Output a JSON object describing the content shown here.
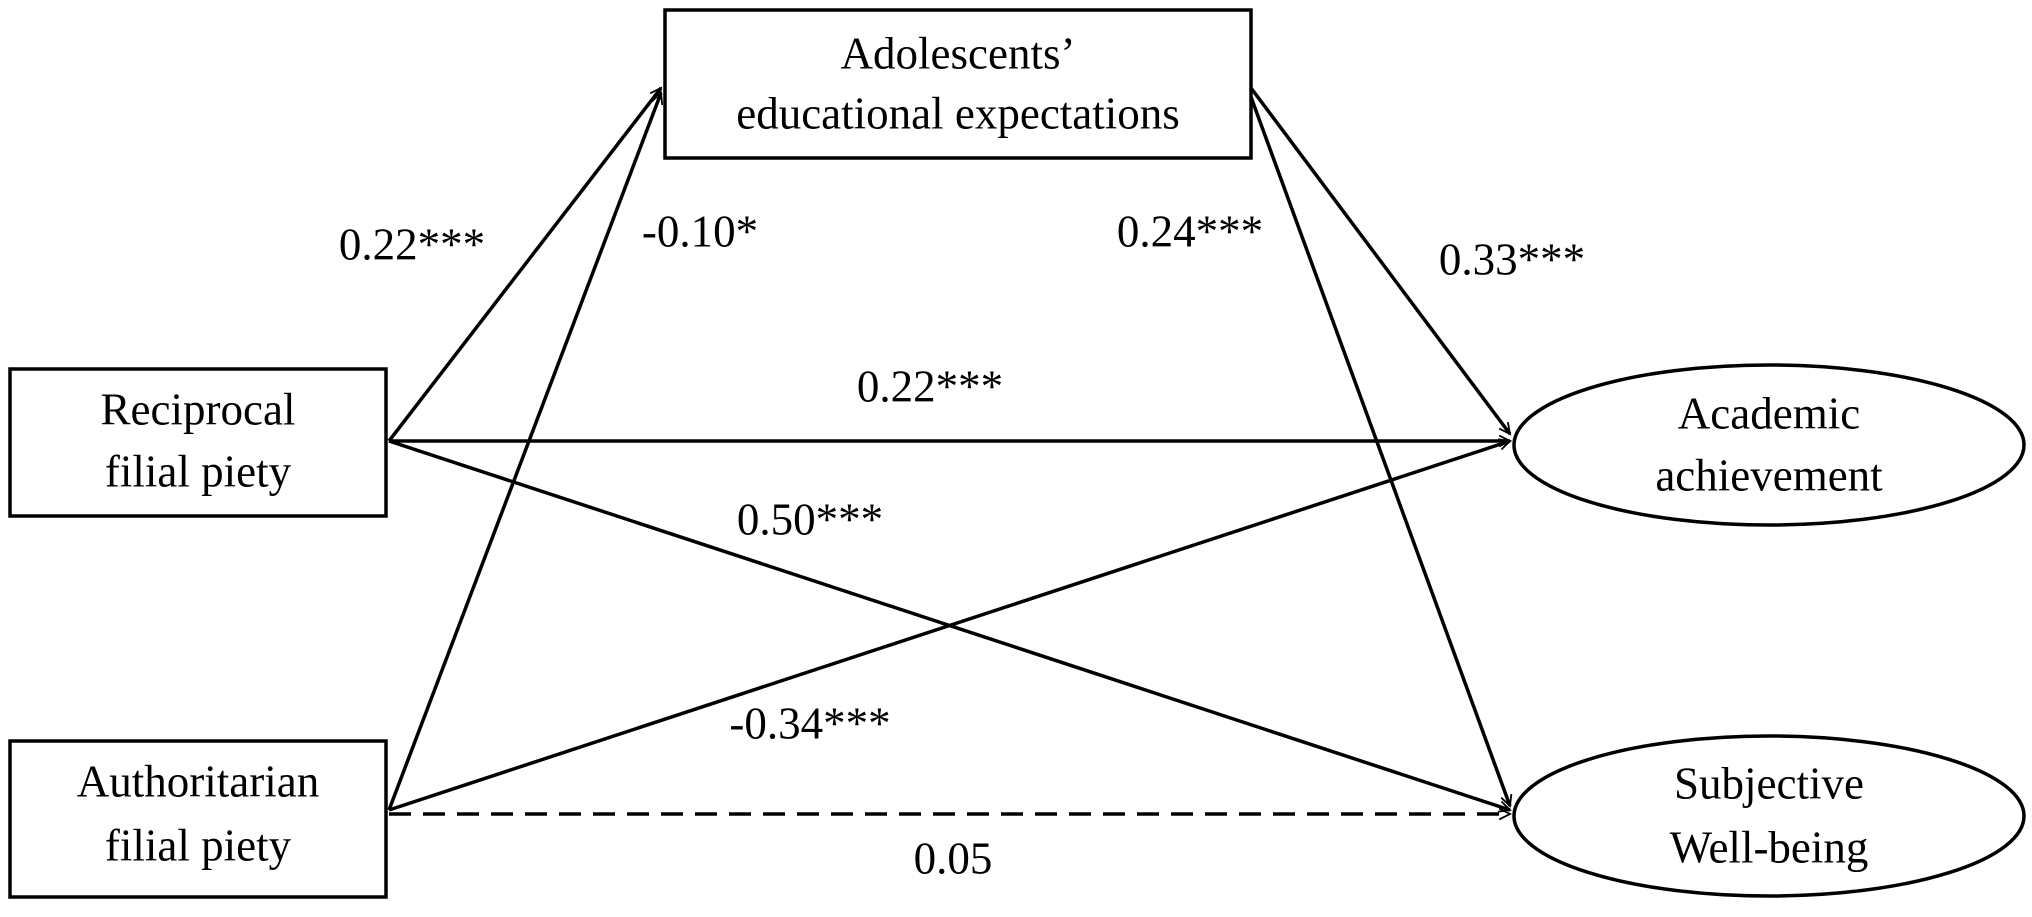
{
  "nodes": [
    {
      "label": [
        "Adolescents’",
        "educational expectations"
      ]
    },
    {
      "label": [
        "Reciprocal",
        "filial piety"
      ]
    },
    {
      "label": [
        "Authoritarian",
        "filial piety"
      ]
    },
    {
      "label": [
        "Academic",
        "achievement"
      ]
    },
    {
      "label": [
        "Subjective",
        "Well-being"
      ]
    }
  ],
  "edges": [
    {
      "label": "0.22***"
    },
    {
      "label": "-0.10*"
    },
    {
      "label": "0.24***"
    },
    {
      "label": "0.33***"
    },
    {
      "label": "0.22***"
    },
    {
      "label": "0.50***"
    },
    {
      "label": "-0.34***"
    },
    {
      "label": "0.05"
    }
  ]
}
